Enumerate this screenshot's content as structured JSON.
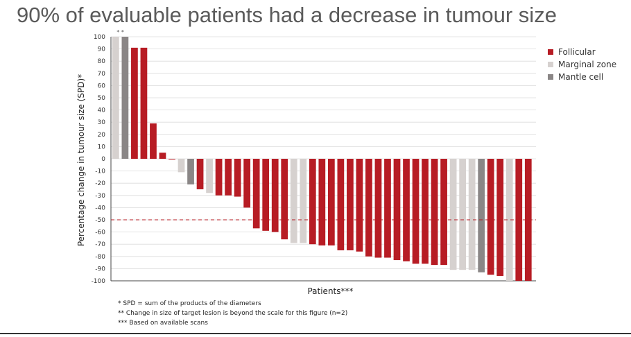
{
  "title": "90% of evaluable patients had a decrease in tumour size",
  "colors": {
    "follicular": "#b71c24",
    "marginal": "#d6d1cf",
    "mantle": "#8a8686",
    "reference_line": "#b71c24"
  },
  "footnotes": [
    "* SPD = sum of the products of the diameters",
    "** Change in size of target lesion is beyond the scale for this figure (n=2)",
    "*** Based on available scans"
  ],
  "chart_data": {
    "type": "bar",
    "xlabel": "Patients***",
    "ylabel": "Percentage change in tumour size (SPD)*",
    "ylim": [
      -100,
      100
    ],
    "yticks": [
      100,
      90,
      80,
      70,
      60,
      50,
      40,
      30,
      20,
      10,
      0,
      -10,
      -20,
      -30,
      -40,
      -50,
      -60,
      -70,
      -80,
      -90,
      -100
    ],
    "grid": true,
    "reference_line": -50,
    "beyond_scale_marker": "* *",
    "legend": {
      "placement": "right",
      "entries": [
        {
          "name": "Follicular",
          "key": "F"
        },
        {
          "name": "Marginal zone",
          "key": "M"
        },
        {
          "name": "Mantle cell",
          "key": "C"
        }
      ]
    },
    "bars": [
      {
        "value": 100,
        "type": "M"
      },
      {
        "value": 100,
        "type": "C"
      },
      {
        "value": 91,
        "type": "F"
      },
      {
        "value": 91,
        "type": "F"
      },
      {
        "value": 29,
        "type": "F"
      },
      {
        "value": 5,
        "type": "F"
      },
      {
        "value": -0.5,
        "type": "F"
      },
      {
        "value": -11,
        "type": "M"
      },
      {
        "value": -21,
        "type": "C"
      },
      {
        "value": -25,
        "type": "F"
      },
      {
        "value": -28,
        "type": "M"
      },
      {
        "value": -30,
        "type": "F"
      },
      {
        "value": -30,
        "type": "F"
      },
      {
        "value": -31,
        "type": "F"
      },
      {
        "value": -40,
        "type": "F"
      },
      {
        "value": -57,
        "type": "F"
      },
      {
        "value": -59,
        "type": "F"
      },
      {
        "value": -60,
        "type": "F"
      },
      {
        "value": -66,
        "type": "F"
      },
      {
        "value": -69,
        "type": "M"
      },
      {
        "value": -69,
        "type": "M"
      },
      {
        "value": -70,
        "type": "F"
      },
      {
        "value": -71,
        "type": "F"
      },
      {
        "value": -71,
        "type": "F"
      },
      {
        "value": -75,
        "type": "F"
      },
      {
        "value": -75,
        "type": "F"
      },
      {
        "value": -76,
        "type": "F"
      },
      {
        "value": -80,
        "type": "F"
      },
      {
        "value": -81,
        "type": "F"
      },
      {
        "value": -81,
        "type": "F"
      },
      {
        "value": -83,
        "type": "F"
      },
      {
        "value": -84,
        "type": "F"
      },
      {
        "value": -86,
        "type": "F"
      },
      {
        "value": -86,
        "type": "F"
      },
      {
        "value": -87,
        "type": "F"
      },
      {
        "value": -87,
        "type": "F"
      },
      {
        "value": -91,
        "type": "M"
      },
      {
        "value": -91,
        "type": "M"
      },
      {
        "value": -91,
        "type": "M"
      },
      {
        "value": -93,
        "type": "C"
      },
      {
        "value": -95,
        "type": "F"
      },
      {
        "value": -96,
        "type": "F"
      },
      {
        "value": -100,
        "type": "M"
      },
      {
        "value": -100,
        "type": "F"
      },
      {
        "value": -100,
        "type": "F"
      }
    ]
  }
}
